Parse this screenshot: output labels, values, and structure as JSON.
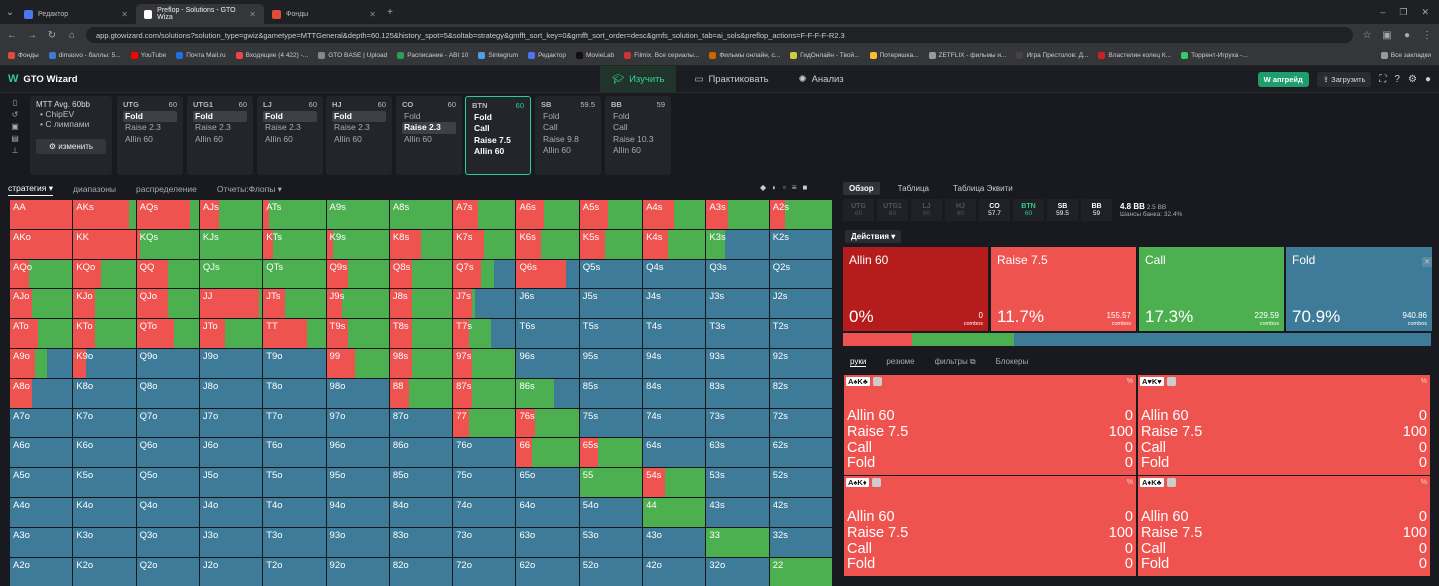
{
  "browser": {
    "tabs": [
      {
        "title": "Редактор",
        "color": "#4a76f0",
        "active": false
      },
      {
        "title": "Preflop - Solutions - GTO Wiza",
        "color": "#ffffff",
        "active": true
      },
      {
        "title": "Фонды",
        "color": "#e04b3a",
        "active": false
      }
    ],
    "url": "app.gtowizard.com/solutions?solution_type=gwiz&gametype=MTTGeneral&depth=60.125&history_spot=5&soltab=strategy&gmfft_sort_key=0&gmfft_sort_order=desc&gmfs_solution_tab=ai_sols&preflop_actions=F-F-F-F-R2.3",
    "bookmarks": [
      {
        "label": "Фонды",
        "color": "#e04b3a"
      },
      {
        "label": "dimasvo - баллы: 5...",
        "color": "#3a7bd5"
      },
      {
        "label": "YouTube",
        "color": "#ff0000"
      },
      {
        "label": "Почта Mail.ru",
        "color": "#1f6fe5"
      },
      {
        "label": "Входящие (4 422) -...",
        "color": "#e44"
      },
      {
        "label": "GTO BASE | Upload",
        "color": "#888"
      },
      {
        "label": "Расписание - ABI 10",
        "color": "#2a9d5c"
      },
      {
        "label": "Sintegrum",
        "color": "#4aa0e6"
      },
      {
        "label": "Редактор",
        "color": "#4a76f0"
      },
      {
        "label": "MovieLab",
        "color": "#111"
      },
      {
        "label": "Filmix. Все сериалы...",
        "color": "#c33"
      },
      {
        "label": "Фильмы онлайн, с...",
        "color": "#c60"
      },
      {
        "label": "ГидОнлайн - Твой...",
        "color": "#cc4"
      },
      {
        "label": "Потеряшка...",
        "color": "#fb3"
      },
      {
        "label": "ZETFLIX - фильмы и...",
        "color": "#999"
      },
      {
        "label": "Игра Престолов: Д...",
        "color": "#444"
      },
      {
        "label": "Властелин колец К...",
        "color": "#c22"
      },
      {
        "label": "Торрент-Игруха -...",
        "color": "#3c6"
      }
    ],
    "bookmarks_all": "Все закладки"
  },
  "app": {
    "logo": "GTO Wizard",
    "modes": [
      "Изучить",
      "Практиковать",
      "Анализ"
    ],
    "upgrade": "апгрейд",
    "upload": "Загрузить"
  },
  "mtt": {
    "title": "MTT",
    "avg": "Avg. 60bb",
    "items": [
      "• ChipEV",
      "• С лимпами"
    ],
    "edit": "изменить"
  },
  "positions": [
    {
      "name": "UTG",
      "stack": "60",
      "actions": [
        "Fold",
        "Raise 2.3",
        "Allin 60"
      ],
      "sel": 0
    },
    {
      "name": "UTG1",
      "stack": "60",
      "actions": [
        "Fold",
        "Raise 2.3",
        "Allin 60"
      ],
      "sel": 0
    },
    {
      "name": "LJ",
      "stack": "60",
      "actions": [
        "Fold",
        "Raise 2.3",
        "Allin 60"
      ],
      "sel": 0
    },
    {
      "name": "HJ",
      "stack": "60",
      "actions": [
        "Fold",
        "Raise 2.3",
        "Allin 60"
      ],
      "sel": 0
    },
    {
      "name": "CO",
      "stack": "60",
      "actions": [
        "Fold",
        "Raise 2.3",
        "Allin 60"
      ],
      "sel": 1
    },
    {
      "name": "BTN",
      "stack": "60",
      "actions": [
        "Fold",
        "Call",
        "Raise 7.5",
        "Allin 60"
      ],
      "sel": -1,
      "current": true
    },
    {
      "name": "SB",
      "stack": "59.5",
      "actions": [
        "Fold",
        "Call",
        "Raise 9.8",
        "Allin 60"
      ],
      "sel": -1
    },
    {
      "name": "BB",
      "stack": "59",
      "actions": [
        "Fold",
        "Call",
        "Raise 10.3",
        "Allin 60"
      ],
      "sel": -1
    }
  ],
  "subtabs": [
    "стратегия",
    "диапазоны",
    "распределение",
    "Отчеты:Флопы"
  ],
  "colors": {
    "allin": "#b71c1c",
    "raise": "#ef5350",
    "call": "#4caf50",
    "fold": "#3d7b99"
  },
  "matrix": [
    [
      "AA",
      "AKs",
      "AQs",
      "AJs",
      "ATs",
      "A9s",
      "A8s",
      "A7s",
      "A6s",
      "A5s",
      "A4s",
      "A3s",
      "A2s"
    ],
    [
      "AKo",
      "KK",
      "KQs",
      "KJs",
      "KTs",
      "K9s",
      "K8s",
      "K7s",
      "K6s",
      "K5s",
      "K4s",
      "K3s",
      "K2s"
    ],
    [
      "AQo",
      "KQo",
      "QQ",
      "QJs",
      "QTs",
      "Q9s",
      "Q8s",
      "Q7s",
      "Q6s",
      "Q5s",
      "Q4s",
      "Q3s",
      "Q2s"
    ],
    [
      "AJo",
      "KJo",
      "QJo",
      "JJ",
      "JTs",
      "J9s",
      "J8s",
      "J7s",
      "J6s",
      "J5s",
      "J4s",
      "J3s",
      "J2s"
    ],
    [
      "ATo",
      "KTo",
      "QTo",
      "JTo",
      "TT",
      "T9s",
      "T8s",
      "T7s",
      "T6s",
      "T5s",
      "T4s",
      "T3s",
      "T2s"
    ],
    [
      "A9o",
      "K9o",
      "Q9o",
      "J9o",
      "T9o",
      "99",
      "98s",
      "97s",
      "96s",
      "95s",
      "94s",
      "93s",
      "92s"
    ],
    [
      "A8o",
      "K8o",
      "Q8o",
      "J8o",
      "T8o",
      "98o",
      "88",
      "87s",
      "86s",
      "85s",
      "84s",
      "83s",
      "82s"
    ],
    [
      "A7o",
      "K7o",
      "Q7o",
      "J7o",
      "T7o",
      "97o",
      "87o",
      "77",
      "76s",
      "75s",
      "74s",
      "73s",
      "72s"
    ],
    [
      "A6o",
      "K6o",
      "Q6o",
      "J6o",
      "T6o",
      "96o",
      "86o",
      "76o",
      "66",
      "65s",
      "64s",
      "63s",
      "62s"
    ],
    [
      "A5o",
      "K5o",
      "Q5o",
      "J5o",
      "T5o",
      "95o",
      "85o",
      "75o",
      "65o",
      "55",
      "54s",
      "53s",
      "52s"
    ],
    [
      "A4o",
      "K4o",
      "Q4o",
      "J4o",
      "T4o",
      "94o",
      "84o",
      "74o",
      "64o",
      "54o",
      "44",
      "43s",
      "42s"
    ],
    [
      "A3o",
      "K3o",
      "Q3o",
      "J3o",
      "T3o",
      "93o",
      "83o",
      "73o",
      "63o",
      "53o",
      "43o",
      "33",
      "32s"
    ],
    [
      "A2o",
      "K2o",
      "Q2o",
      "J2o",
      "T2o",
      "92o",
      "82o",
      "72o",
      "62o",
      "52o",
      "42o",
      "32o",
      "22"
    ]
  ],
  "right": {
    "tabs": [
      "Обзор",
      "Таблица",
      "Таблица Эквити"
    ],
    "strip": [
      {
        "name": "UTG",
        "stack": "60",
        "state": "off"
      },
      {
        "name": "UTG1",
        "stack": "60",
        "state": "off"
      },
      {
        "name": "LJ",
        "stack": "60",
        "state": "off"
      },
      {
        "name": "HJ",
        "stack": "60",
        "state": "off"
      },
      {
        "name": "CO",
        "stack": "57.7",
        "state": "on"
      },
      {
        "name": "BTN",
        "stack": "60",
        "state": "cur"
      },
      {
        "name": "SB",
        "stack": "59.5",
        "state": "on"
      },
      {
        "name": "BB",
        "stack": "59",
        "state": "on"
      }
    ],
    "pot": "4.8 BB",
    "pot2": "2.5 BB",
    "odds": "Шансы банка: 32.4%",
    "actions_dd": "Действия",
    "actions": [
      {
        "name": "Allin 60",
        "pct": "0%",
        "combos": "0",
        "color": "#b71c1c",
        "frac": 0.0
      },
      {
        "name": "Raise 7.5",
        "pct": "11.7%",
        "combos": "155.57",
        "color": "#ef5350",
        "frac": 0.117
      },
      {
        "name": "Call",
        "pct": "17.3%",
        "combos": "229.59",
        "color": "#4caf50",
        "frac": 0.173
      },
      {
        "name": "Fold",
        "pct": "70.9%",
        "combos": "940.86",
        "color": "#3d7b99",
        "frac": 0.709
      }
    ],
    "combos_label": "combos",
    "hand_tabs": [
      "руки",
      "резюме",
      "фильтры",
      "Блокеры"
    ],
    "hands": [
      {
        "cards": [
          "A♠",
          "K♣"
        ],
        "rows": [
          [
            "Allin 60",
            "0"
          ],
          [
            "Raise 7.5",
            "100"
          ],
          [
            "Call",
            "0"
          ],
          [
            "Fold",
            "0"
          ]
        ]
      },
      {
        "cards": [
          "A♥",
          "K♥"
        ],
        "rows": [
          [
            "Allin 60",
            "0"
          ],
          [
            "Raise 7.5",
            "100"
          ],
          [
            "Call",
            "0"
          ],
          [
            "Fold",
            "0"
          ]
        ]
      },
      {
        "cards": [
          "A♠",
          "K♦"
        ],
        "rows": [
          [
            "Allin 60",
            "0"
          ],
          [
            "Raise 7.5",
            "100"
          ],
          [
            "Call",
            "0"
          ],
          [
            "Fold",
            "0"
          ]
        ]
      },
      {
        "cards": [
          "A♦",
          "K♣"
        ],
        "rows": [
          [
            "Allin 60",
            "0"
          ],
          [
            "Raise 7.5",
            "100"
          ],
          [
            "Call",
            "0"
          ],
          [
            "Fold",
            "0"
          ]
        ]
      }
    ],
    "pct_sign": "%"
  }
}
